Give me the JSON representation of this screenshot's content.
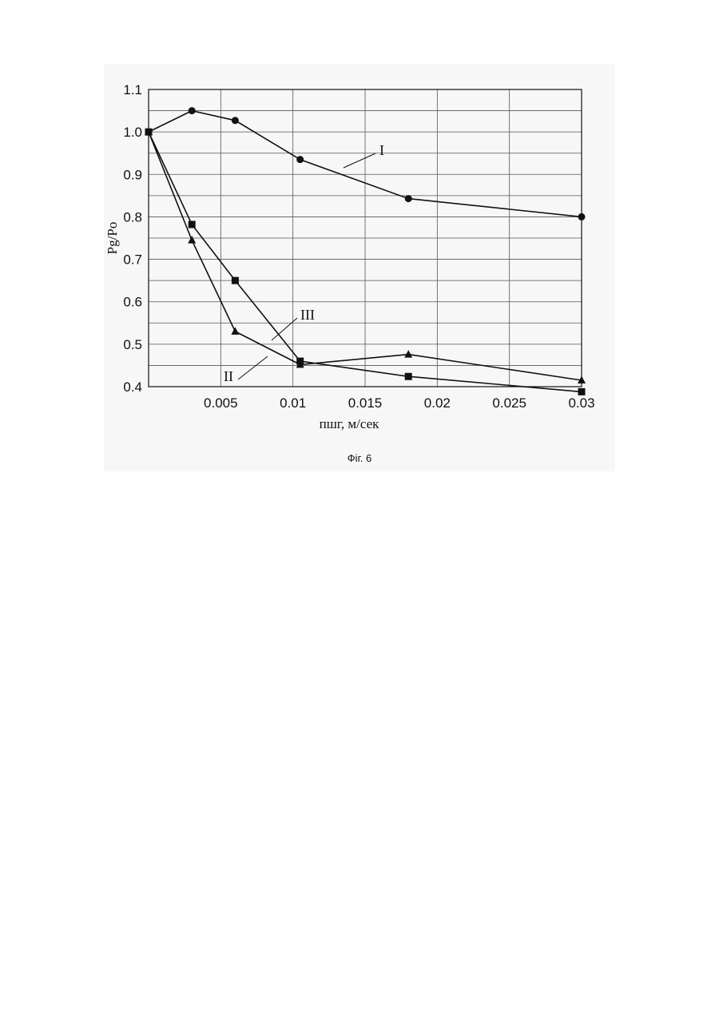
{
  "chart_data": {
    "type": "line",
    "title": "",
    "xlabel": "пшг, м/сек",
    "ylabel": "Pg/Po",
    "xlim": [
      0,
      0.03
    ],
    "ylim": [
      0.4,
      1.1
    ],
    "grid": true,
    "x_ticks": [
      0.005,
      0.01,
      0.015,
      0.02,
      0.025,
      0.03
    ],
    "x_tick_labels": [
      "0.005",
      "0.01",
      "0.015",
      "0.02",
      "0.025",
      "0.03"
    ],
    "y_ticks": [
      0.4,
      0.5,
      0.6,
      0.7,
      0.8,
      0.9,
      1.0,
      1.1
    ],
    "y_tick_labels": [
      "0.4",
      "0.5",
      "0.6",
      "0.7",
      "0.8",
      "0.9",
      "1.0",
      "1.1"
    ],
    "series": [
      {
        "name": "I",
        "marker": "circle",
        "x": [
          0,
          0.003,
          0.006,
          0.0105,
          0.018,
          0.03
        ],
        "y": [
          1.0,
          1.05,
          1.027,
          0.935,
          0.843,
          0.8
        ]
      },
      {
        "name": "II",
        "marker": "triangle",
        "x": [
          0,
          0.003,
          0.006,
          0.0105,
          0.018,
          0.03
        ],
        "y": [
          1.0,
          0.745,
          0.53,
          0.452,
          0.476,
          0.415
        ]
      },
      {
        "name": "III",
        "marker": "square",
        "x": [
          0,
          0.003,
          0.006,
          0.0105,
          0.018,
          0.03
        ],
        "y": [
          1.0,
          0.782,
          0.65,
          0.46,
          0.424,
          0.388
        ]
      }
    ]
  },
  "caption": "Фіг. 6"
}
